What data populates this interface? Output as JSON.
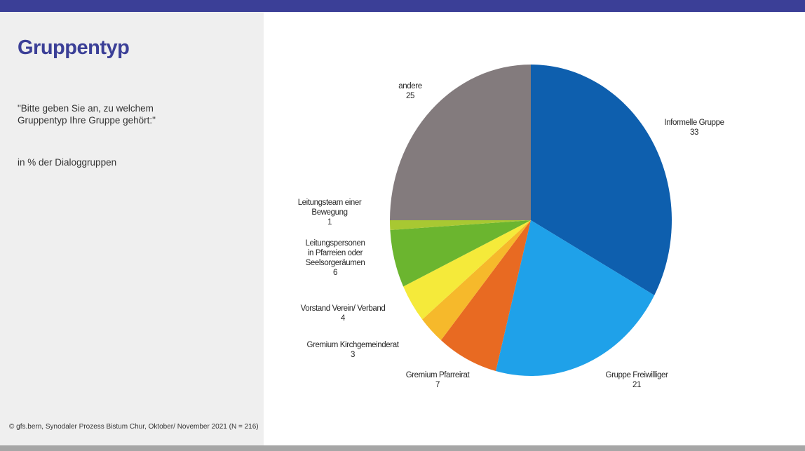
{
  "page": {
    "title": "Gruppentyp",
    "question": "\"Bitte geben Sie an, zu welchem\nGruppentyp Ihre Gruppe gehört:\"",
    "unit_note": "in % der Dialoggruppen",
    "source_note": "©  gfs.bern, Synodaler Prozess Bistum Chur, Oktober/ November 2021 (N = 216)"
  },
  "colors": {
    "header_bar": "#3b3f97",
    "footer_bar": "#a6a6a6",
    "side_panel": "#efefef",
    "title": "#3b3f97"
  },
  "chart_data": {
    "type": "pie",
    "title": "",
    "slices": [
      {
        "label": "Informelle Gruppe",
        "value": 33,
        "color": "#0e5fae"
      },
      {
        "label": "Gruppe Freiwilliger",
        "value": 21,
        "color": "#1fa1e9"
      },
      {
        "label": "Gremium Pfarreirat",
        "value": 7,
        "color": "#e86a22"
      },
      {
        "label": "Gremium Kirchgemeinderat",
        "value": 3,
        "color": "#f6b92b"
      },
      {
        "label": "Vorstand Verein/ Verband",
        "value": 4,
        "color": "#f5ea3a"
      },
      {
        "label": "Leitungspersonen in Pfarreien oder Seelsorgeräumen",
        "value": 6,
        "color": "#6bb52f"
      },
      {
        "label": "Leitungsteam einer Bewegung",
        "value": 1,
        "color": "#a8c832"
      },
      {
        "label": "andere",
        "value": 25,
        "color": "#837b7d"
      }
    ]
  }
}
